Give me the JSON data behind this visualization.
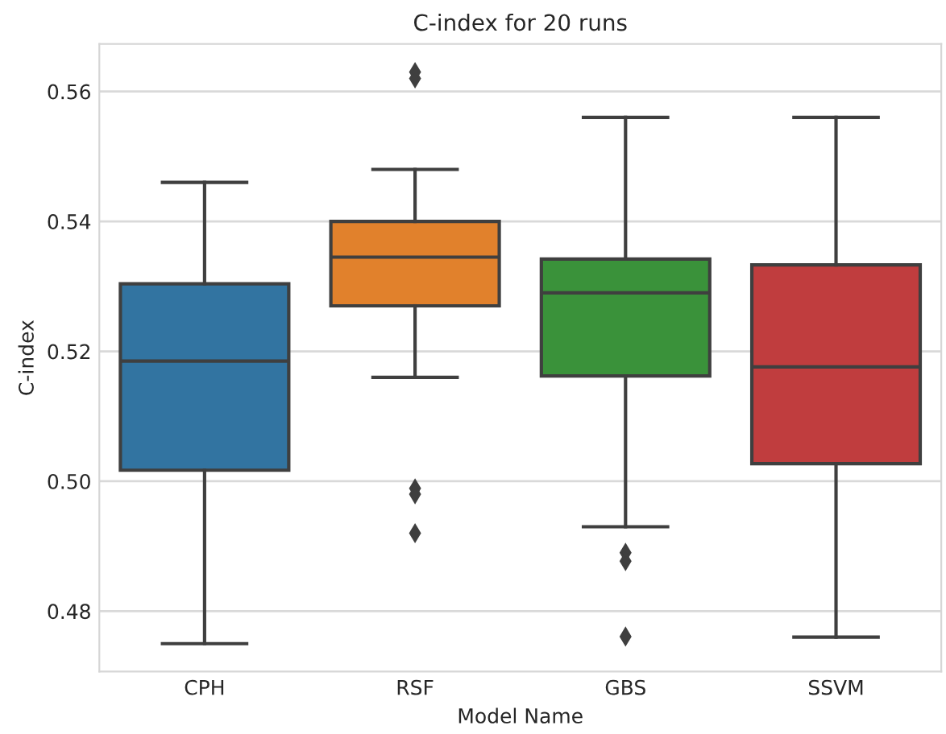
{
  "chart_data": {
    "type": "box",
    "title": "C-index for 20 runs",
    "xlabel": "Model Name",
    "ylabel": "C-index",
    "categories": [
      "CPH",
      "RSF",
      "GBS",
      "SSVM"
    ],
    "colors": [
      "#3274a1",
      "#e1812c",
      "#3a923a",
      "#c03d3e"
    ],
    "boxes": [
      {
        "low": 0.475,
        "q1": 0.5017,
        "median": 0.5185,
        "q3": 0.5304,
        "high": 0.546
      },
      {
        "low": 0.516,
        "q1": 0.527,
        "median": 0.5345,
        "q3": 0.54,
        "high": 0.548,
        "outliers": [
          0.563,
          0.562,
          0.4989,
          0.498,
          0.492
        ]
      },
      {
        "low": 0.493,
        "q1": 0.5162,
        "median": 0.529,
        "q3": 0.5342,
        "high": 0.556,
        "outliers": [
          0.489,
          0.4877,
          0.4761
        ]
      },
      {
        "low": 0.476,
        "q1": 0.5027,
        "median": 0.5176,
        "q3": 0.5333,
        "high": 0.556
      }
    ],
    "ylim": [
      0.4707,
      0.5673
    ],
    "yticks": [
      0.48,
      {
        "value": 0.5,
        "label": "0.50"
      },
      0.52,
      0.54,
      0.56
    ],
    "grid": "y",
    "marker": "diamond"
  }
}
